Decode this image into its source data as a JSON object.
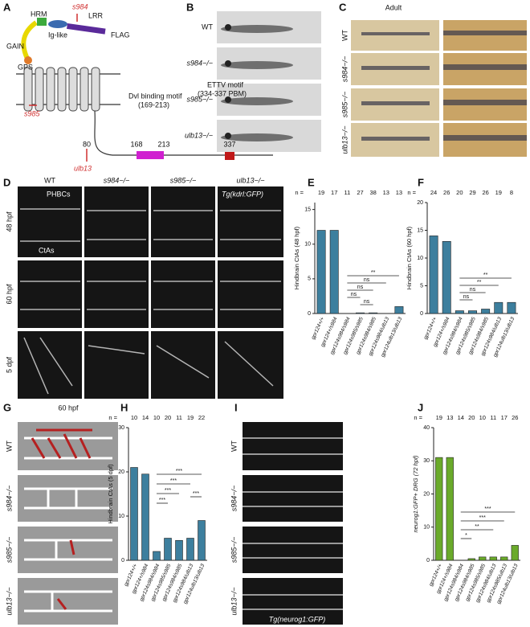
{
  "panel_labels": [
    "A",
    "B",
    "C",
    "D",
    "E",
    "F",
    "G",
    "H",
    "I",
    "J"
  ],
  "genotype_labels": [
    "WT",
    "s984−/−",
    "s985−/−",
    "ulb13−/−"
  ],
  "panel_a": {
    "domains": [
      "HRM",
      "LRR",
      "Ig-like",
      "FLAG",
      "GAIN",
      "GPS"
    ],
    "allele_s984": "s984",
    "allele_s985": "s985",
    "allele_ulb13": "ulb13",
    "dvl_motif": "Dvl binding motif",
    "dvl_range": "(169-213)",
    "ettv_motif": "ETTV motif",
    "ettv_range": "(334-337 PBM)",
    "positions": [
      "80",
      "168",
      "213",
      "337"
    ]
  },
  "panel_c": {
    "title": "Adult"
  },
  "panel_d": {
    "columns": [
      "WT",
      "s984−/−",
      "s985−/−",
      "ulb13−/−"
    ],
    "rows": [
      "48 hpf",
      "60 hpf",
      "5 dpf"
    ],
    "annotations": [
      "PHBCs",
      "CtAs"
    ],
    "transgene": "Tg(kdrl:GFP)"
  },
  "panel_g": {
    "title": "60 hpf"
  },
  "panel_i": {
    "transgene": "Tg(neurog1:GFP)"
  },
  "charts": {
    "E": {
      "type": "bar",
      "ylabel": "Hindbrain CtAs (48 hpf)",
      "n_label": "n =",
      "n": [
        19,
        17,
        11,
        27,
        38,
        13,
        13
      ],
      "categories": [
        "gpr124+/+",
        "gpr124+/s984",
        "gpr124s984/s984",
        "gpr124s985/s985",
        "gpr124s984/s985",
        "gpr124s984/ulb13",
        "gpr124ulb13/ulb13"
      ],
      "values": [
        12,
        12,
        0,
        0.1,
        0.1,
        0,
        1
      ],
      "color": "#3d7f9e",
      "ylim": [
        0,
        16
      ],
      "yticks": [
        0,
        5,
        10,
        15
      ],
      "significance": [
        "**",
        "ns",
        "ns",
        "ns",
        "ns"
      ]
    },
    "F": {
      "type": "bar",
      "ylabel": "Hindbrain CtAs (60 hpf)",
      "n_label": "n =",
      "n": [
        24,
        26,
        20,
        29,
        26,
        19,
        8
      ],
      "categories": [
        "gpr124+/+",
        "gpr124+/s984",
        "gpr124s984/s984",
        "gpr124s985/s985",
        "gpr124s984/s985",
        "gpr124s984/ulb13",
        "gpr124ulb13/ulb13"
      ],
      "values": [
        14,
        13,
        0.5,
        0.5,
        0.8,
        2,
        2
      ],
      "color": "#3d7f9e",
      "ylim": [
        0,
        20
      ],
      "yticks": [
        0,
        5,
        10,
        15,
        20
      ],
      "significance": [
        "**",
        "**",
        "ns",
        "ns"
      ]
    },
    "H": {
      "type": "bar",
      "ylabel": "Hindbrain CtAs (5 dpf)",
      "n_label": "n =",
      "n": [
        10,
        14,
        10,
        20,
        11,
        19,
        22
      ],
      "categories": [
        "gpr124+/+",
        "gpr124+/s984",
        "gpr124s984/s984",
        "gpr124s985/s985",
        "gpr124s984/s985",
        "gpr124s984/ulb13",
        "gpr124ulb13/ulb13"
      ],
      "values": [
        21,
        19.5,
        2,
        5,
        4.5,
        5,
        9
      ],
      "color": "#3d7f9e",
      "ylim": [
        0,
        30
      ],
      "yticks": [
        0,
        10,
        20,
        30
      ],
      "significance": [
        "***",
        "***",
        "***",
        "***",
        "***"
      ]
    },
    "J": {
      "type": "bar",
      "ylabel": "neurog1:GFP+ DRG (72 hpf)",
      "n_label": "n =",
      "n": [
        19,
        13,
        14,
        20,
        10,
        11,
        17,
        26
      ],
      "categories": [
        "gpr124+/+",
        "gpr124+/s984",
        "gpr124s984/s984",
        "gpr124s984/s985",
        "gpr124s985/s985",
        "gpr124s984/ulb13",
        "gpr124s985/ulb13",
        "gpr124ulb13/ulb13"
      ],
      "values": [
        31,
        31,
        0,
        0.5,
        1,
        1,
        1,
        4.5
      ],
      "color": "#6aaa2a",
      "ylim": [
        0,
        40
      ],
      "yticks": [
        0,
        10,
        20,
        30,
        40
      ],
      "significance": [
        "***",
        "***",
        "**",
        "*"
      ]
    }
  }
}
